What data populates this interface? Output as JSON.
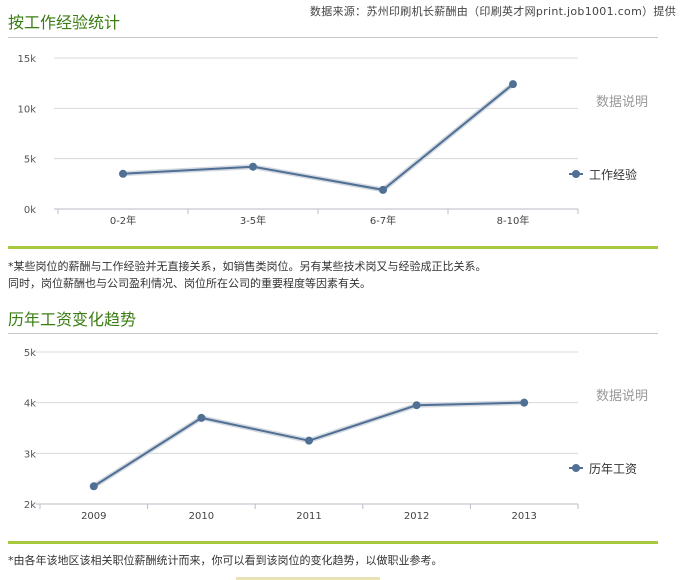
{
  "header": {
    "source": "数据来源：苏州印刷机长薪酬由（印刷英才网print.job1001.com）提供"
  },
  "chart_data": [
    {
      "type": "line",
      "title": "按工作经验统计",
      "categories": [
        "0-2年",
        "3-5年",
        "6-7年",
        "8-10年"
      ],
      "series": [
        {
          "name": "工作经验",
          "values": [
            3500,
            4200,
            1900,
            12400
          ]
        }
      ],
      "ylim": [
        0,
        15000
      ],
      "yticks": [
        0,
        5000,
        10000,
        15000
      ],
      "ytick_labels": [
        "0k",
        "5k",
        "10k",
        "15k"
      ],
      "side_label": "数据说明",
      "legend": "right",
      "grid": true,
      "color": "#4f6f95",
      "note": [
        "*某些岗位的薪酬与工作经验并无直接关系，如销售类岗位。另有某些技术岗又与经验成正比关系。",
        "同时，岗位薪酬也与公司盈利情况、岗位所在公司的重要程度等因素有关。"
      ]
    },
    {
      "type": "line",
      "title": "历年工资变化趋势",
      "categories": [
        "2009",
        "2010",
        "2011",
        "2012",
        "2013"
      ],
      "series": [
        {
          "name": "历年工资",
          "values": [
            2350,
            3700,
            3250,
            3950,
            4000
          ]
        }
      ],
      "ylim": [
        2000,
        5000
      ],
      "yticks": [
        2000,
        3000,
        4000,
        5000
      ],
      "ytick_labels": [
        "2k",
        "3k",
        "4k",
        "5k"
      ],
      "side_label": "数据说明",
      "legend": "right",
      "grid": true,
      "color": "#4f6f95",
      "note": [
        "*由各年该地区该相关职位薪酬统计而来，你可以看到该岗位的变化趋势，以做职业参考。"
      ]
    }
  ]
}
